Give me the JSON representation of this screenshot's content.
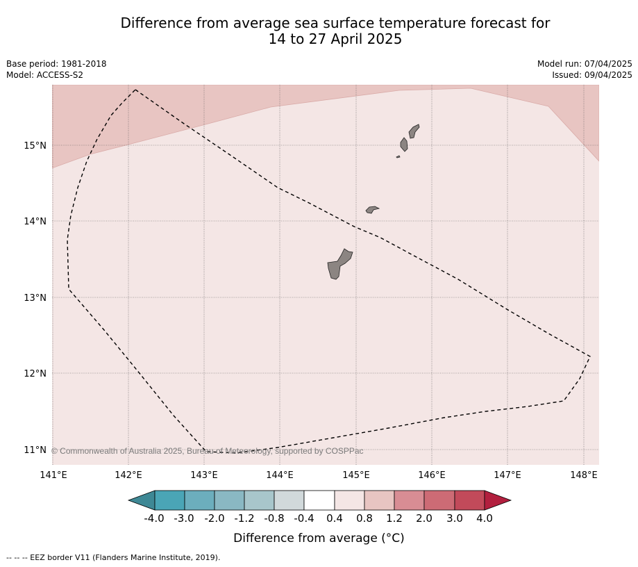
{
  "title": {
    "line1": "Difference from average sea surface temperature forecast for",
    "line2": "14 to 27 April 2025"
  },
  "meta": {
    "base_period": "Base period: 1981-2018",
    "model": "Model: ACCESS-S2",
    "model_run": "Model run: 07/04/2025",
    "issued": "Issued: 09/04/2025"
  },
  "map": {
    "lon_labels": [
      "141°E",
      "142°E",
      "143°E",
      "144°E",
      "145°E",
      "146°E",
      "147°E",
      "148°E"
    ],
    "lat_labels": [
      "15°N",
      "14°N",
      "13°N",
      "12°N",
      "11°N"
    ],
    "copyright": "© Commonwealth of Australia 2025, Bureau of Meteorology, supported by COSPPac",
    "colors": {
      "band_04_08": "#f4e6e5",
      "band_08_12": "#e8c5c2",
      "land": "#8c8582"
    }
  },
  "colorbar": {
    "ticks": [
      "-4.0",
      "-3.0",
      "-2.0",
      "-1.2",
      "-0.8",
      "-0.4",
      "0.4",
      "0.8",
      "1.2",
      "2.0",
      "3.0",
      "4.0"
    ],
    "colors": [
      "#3e8895",
      "#4aa5b6",
      "#6caebd",
      "#8ab8c3",
      "#a8c6cb",
      "#d1d9db",
      "#ffffff",
      "#f4e6e5",
      "#e8c5c2",
      "#d88d94",
      "#cd6b75",
      "#c24a5a",
      "#b21f3e"
    ],
    "label": "Difference from average (°C)"
  },
  "footer": "--  --  -- EEZ border V11 (Flanders Marine Institute, 2019)."
}
